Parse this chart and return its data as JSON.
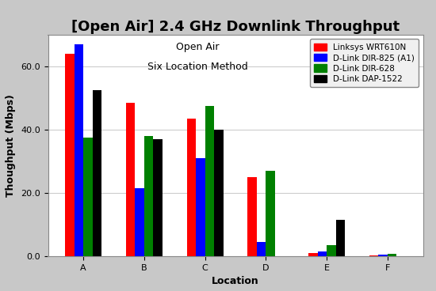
{
  "title": "[Open Air] 2.4 GHz Downlink Throughput",
  "subtitle1": "Open Air",
  "subtitle2": "Six Location Method",
  "xlabel": "Location",
  "ylabel": "Thoughput (Mbps)",
  "locations": [
    "A",
    "B",
    "C",
    "D",
    "E",
    "F"
  ],
  "series": {
    "Linksys WRT610N": {
      "color": "#ff0000",
      "values": [
        64.0,
        48.5,
        43.5,
        25.0,
        1.0,
        0.2
      ]
    },
    "D-Link DIR-825 (A1)": {
      "color": "#0000ff",
      "values": [
        67.0,
        21.5,
        31.0,
        4.5,
        1.5,
        0.5
      ]
    },
    "D-Link DIR-628": {
      "color": "#008000",
      "values": [
        37.5,
        38.0,
        47.5,
        27.0,
        3.5,
        0.8
      ]
    },
    "D-Link DAP-1522": {
      "color": "#000000",
      "values": [
        52.5,
        37.0,
        40.0,
        0.0,
        11.5,
        0.0
      ]
    }
  },
  "ylim": [
    0,
    70
  ],
  "yticks": [
    0.0,
    20.0,
    40.0,
    60.0
  ],
  "fig_facecolor": "#c8c8c8",
  "ax_facecolor": "#ffffff",
  "legend_fontsize": 7.5,
  "title_fontsize": 13,
  "subtitle_fontsize": 9,
  "axis_label_fontsize": 9,
  "tick_fontsize": 8,
  "bar_width": 0.15
}
